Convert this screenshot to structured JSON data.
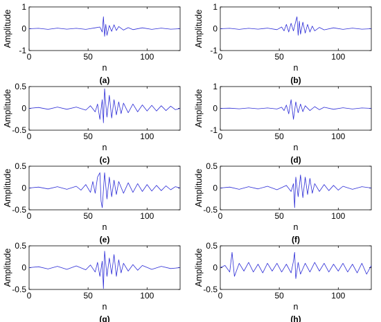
{
  "figure": {
    "colors": {
      "trace": "#2b2bd6",
      "axis": "#000000",
      "background": "#ffffff"
    }
  },
  "chart_data": [
    {
      "type": "line",
      "caption": "(a)",
      "xlabel": "n",
      "ylabel": "Amplitude",
      "xlim": [
        0,
        128
      ],
      "ylim": [
        -1,
        1
      ],
      "xticks": [
        0,
        50,
        100
      ],
      "yticks": [
        -1,
        0,
        1
      ],
      "ytick_labels": [
        "-1",
        "0",
        "1"
      ],
      "series": [
        {
          "x": [
            0,
            8,
            16,
            24,
            32,
            40,
            48,
            56,
            60,
            62,
            63,
            64,
            65,
            66,
            68,
            70,
            72,
            74,
            76,
            80,
            84,
            88,
            96,
            104,
            112,
            120,
            128
          ],
          "y": [
            0,
            0.02,
            -0.03,
            0.03,
            -0.02,
            0.02,
            -0.03,
            0.04,
            0.08,
            -0.15,
            0.55,
            -0.35,
            0.2,
            -0.3,
            0.15,
            -0.12,
            0.18,
            -0.08,
            0.1,
            -0.06,
            0.05,
            -0.04,
            0.04,
            -0.03,
            0.03,
            -0.02,
            0
          ]
        }
      ]
    },
    {
      "type": "line",
      "caption": "(b)",
      "xlabel": "n",
      "ylabel": "Amplitude",
      "xlim": [
        0,
        128
      ],
      "ylim": [
        -1,
        1
      ],
      "xticks": [
        0,
        50,
        100
      ],
      "yticks": [
        -1,
        0,
        1
      ],
      "ytick_labels": [
        "-1",
        "0",
        "1"
      ],
      "series": [
        {
          "x": [
            0,
            8,
            16,
            24,
            32,
            40,
            48,
            52,
            54,
            56,
            58,
            60,
            62,
            64,
            65,
            66,
            67,
            68,
            70,
            72,
            74,
            76,
            78,
            80,
            84,
            88,
            96,
            104,
            112,
            120,
            128
          ],
          "y": [
            0,
            0.02,
            -0.03,
            0.02,
            -0.02,
            0.03,
            -0.04,
            0.08,
            -0.1,
            0.2,
            -0.15,
            0.25,
            -0.1,
            0.35,
            0.55,
            -0.3,
            0.35,
            -0.25,
            0.3,
            -0.2,
            0.2,
            -0.15,
            0.12,
            -0.1,
            0.06,
            -0.05,
            0.04,
            -0.03,
            0.03,
            -0.02,
            0
          ]
        }
      ]
    },
    {
      "type": "line",
      "caption": "(c)",
      "xlabel": "n",
      "ylabel": "Amplitude",
      "xlim": [
        0,
        128
      ],
      "ylim": [
        -0.5,
        0.5
      ],
      "xticks": [
        0,
        50,
        100
      ],
      "yticks": [
        -0.5,
        0,
        0.5
      ],
      "ytick_labels": [
        "-0.5",
        "0",
        "0.5"
      ],
      "series": [
        {
          "x": [
            0,
            8,
            16,
            24,
            32,
            40,
            48,
            52,
            56,
            58,
            60,
            62,
            63,
            64,
            65,
            66,
            68,
            70,
            72,
            74,
            76,
            78,
            80,
            84,
            88,
            92,
            96,
            100,
            104,
            108,
            112,
            116,
            120,
            124,
            128
          ],
          "y": [
            0,
            0.02,
            -0.02,
            0.03,
            -0.02,
            0.03,
            -0.04,
            0.06,
            -0.08,
            0.1,
            -0.25,
            0.2,
            -0.33,
            0.45,
            0.1,
            -0.2,
            0.3,
            -0.22,
            0.2,
            -0.15,
            0.15,
            -0.12,
            0.12,
            -0.1,
            0.1,
            -0.08,
            0.08,
            -0.06,
            0.07,
            -0.06,
            0.06,
            -0.05,
            0.05,
            -0.03,
            0
          ]
        }
      ]
    },
    {
      "type": "line",
      "caption": "(d)",
      "xlabel": "n",
      "ylabel": "Amplitude",
      "xlim": [
        0,
        128
      ],
      "ylim": [
        -1,
        1
      ],
      "xticks": [
        0,
        50,
        100
      ],
      "yticks": [
        -1,
        0,
        1
      ],
      "ytick_labels": [
        "-1",
        "0",
        "1"
      ],
      "series": [
        {
          "x": [
            0,
            8,
            16,
            24,
            32,
            40,
            48,
            52,
            54,
            56,
            58,
            60,
            62,
            64,
            66,
            68,
            70,
            72,
            76,
            80,
            84,
            88,
            96,
            104,
            112,
            120,
            128
          ],
          "y": [
            0,
            0.01,
            -0.02,
            0.02,
            -0.02,
            0.02,
            -0.03,
            0.05,
            -0.1,
            0.15,
            -0.25,
            0.4,
            -0.5,
            0.3,
            -0.2,
            0.2,
            -0.15,
            0.12,
            -0.1,
            0.08,
            -0.06,
            0.05,
            -0.04,
            0.03,
            -0.03,
            0.02,
            0
          ]
        }
      ]
    },
    {
      "type": "line",
      "caption": "(e)",
      "xlabel": "n",
      "ylabel": "Amplitude",
      "xlim": [
        0,
        128
      ],
      "ylim": [
        -0.5,
        0.5
      ],
      "xticks": [
        0,
        50,
        100
      ],
      "yticks": [
        -0.5,
        0,
        0.5
      ],
      "ytick_labels": [
        "-0.5",
        "0",
        "0.5"
      ],
      "series": [
        {
          "x": [
            0,
            8,
            16,
            24,
            32,
            40,
            44,
            48,
            52,
            54,
            56,
            58,
            60,
            61,
            62,
            64,
            66,
            68,
            70,
            72,
            74,
            76,
            80,
            84,
            88,
            92,
            96,
            100,
            104,
            108,
            112,
            116,
            120,
            124,
            128
          ],
          "y": [
            0,
            0.02,
            -0.02,
            0.03,
            -0.03,
            0.04,
            -0.05,
            0.08,
            -0.1,
            0.15,
            -0.12,
            0.25,
            0.35,
            -0.3,
            -0.45,
            0.35,
            -0.25,
            0.25,
            -0.2,
            0.18,
            -0.15,
            0.15,
            -0.12,
            0.12,
            -0.1,
            0.1,
            -0.08,
            0.08,
            -0.07,
            0.06,
            -0.06,
            0.05,
            -0.04,
            0.03,
            0
          ]
        }
      ]
    },
    {
      "type": "line",
      "caption": "(f)",
      "xlabel": "n",
      "ylabel": "Amplitude",
      "xlim": [
        0,
        128
      ],
      "ylim": [
        -0.5,
        0.5
      ],
      "xticks": [
        0,
        50,
        100
      ],
      "yticks": [
        -0.5,
        0,
        0.5
      ],
      "ytick_labels": [
        "-0.5",
        "0",
        "0.5"
      ],
      "series": [
        {
          "x": [
            0,
            8,
            16,
            24,
            32,
            40,
            48,
            56,
            60,
            62,
            63,
            64,
            66,
            68,
            70,
            72,
            74,
            76,
            78,
            80,
            84,
            88,
            92,
            96,
            100,
            104,
            112,
            120,
            128
          ],
          "y": [
            0,
            0.02,
            -0.03,
            0.03,
            -0.02,
            0.04,
            -0.04,
            0.06,
            -0.08,
            0.1,
            -0.45,
            0.25,
            -0.2,
            0.3,
            -0.22,
            0.25,
            -0.15,
            0.22,
            -0.12,
            0.1,
            -0.08,
            0.08,
            -0.06,
            0.06,
            -0.05,
            0.04,
            -0.03,
            0.03,
            0
          ]
        }
      ]
    },
    {
      "type": "line",
      "caption": "(g)",
      "xlabel": "n",
      "ylabel": "Amplitude",
      "xlim": [
        0,
        128
      ],
      "ylim": [
        -0.5,
        0.5
      ],
      "xticks": [
        0,
        50,
        100
      ],
      "yticks": [
        -0.5,
        0,
        0.5
      ],
      "ytick_labels": [
        "-0.5",
        "0",
        "0.5"
      ],
      "series": [
        {
          "x": [
            0,
            8,
            16,
            24,
            32,
            40,
            48,
            52,
            56,
            58,
            60,
            62,
            63,
            64,
            66,
            68,
            70,
            72,
            74,
            76,
            78,
            80,
            84,
            88,
            92,
            96,
            104,
            112,
            120,
            128
          ],
          "y": [
            0,
            0.02,
            -0.03,
            0.03,
            -0.04,
            0.04,
            -0.05,
            0.06,
            -0.1,
            0.12,
            -0.2,
            0.15,
            -0.48,
            0.38,
            -0.2,
            0.22,
            -0.15,
            0.3,
            -0.2,
            0.18,
            -0.12,
            0.1,
            -0.08,
            0.07,
            -0.06,
            0.05,
            -0.04,
            0.03,
            -0.02,
            0
          ]
        }
      ]
    },
    {
      "type": "line",
      "caption": "(h)",
      "xlabel": "n",
      "ylabel": "Amplitude",
      "xlim": [
        0,
        128
      ],
      "ylim": [
        -0.5,
        0.5
      ],
      "xticks": [
        0,
        50,
        100
      ],
      "yticks": [
        -0.5,
        0,
        0.5
      ],
      "ytick_labels": [
        "-0.5",
        "0",
        "0.5"
      ],
      "series": [
        {
          "x": [
            0,
            4,
            8,
            10,
            12,
            16,
            20,
            24,
            28,
            32,
            36,
            40,
            44,
            48,
            52,
            56,
            60,
            62,
            63,
            64,
            66,
            68,
            72,
            76,
            80,
            84,
            88,
            92,
            96,
            100,
            104,
            108,
            112,
            116,
            120,
            124,
            128
          ],
          "y": [
            0,
            0.05,
            -0.1,
            0.35,
            -0.2,
            0.1,
            -0.08,
            0.12,
            -0.1,
            0.08,
            -0.12,
            0.1,
            -0.08,
            0.1,
            -0.1,
            0.08,
            -0.12,
            0.15,
            0.35,
            -0.25,
            0.12,
            -0.15,
            0.1,
            -0.1,
            0.12,
            -0.08,
            0.1,
            -0.1,
            0.08,
            -0.08,
            0.1,
            -0.1,
            0.08,
            -0.12,
            0.1,
            -0.15,
            0.05
          ]
        }
      ]
    }
  ]
}
